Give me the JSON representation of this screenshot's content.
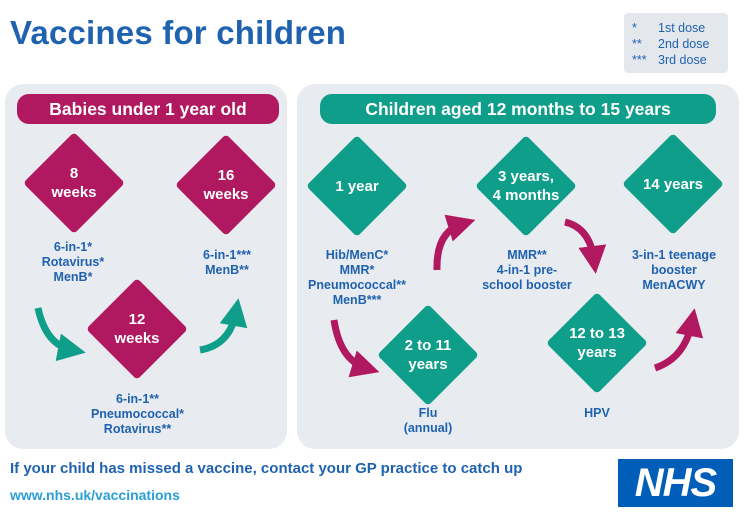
{
  "title": "Vaccines for children",
  "legend": [
    {
      "symbol": "*",
      "label": "1st dose"
    },
    {
      "symbol": "**",
      "label": "2nd dose"
    },
    {
      "symbol": "***",
      "label": "3rd dose"
    }
  ],
  "babies": {
    "heading": "Babies under 1 year old",
    "stages": [
      {
        "age": "8\nweeks",
        "vaccines": "6-in-1*\nRotavirus*\nMenB*"
      },
      {
        "age": "12\nweeks",
        "vaccines": "6-in-1**\nPneumococcal*\nRotavirus**"
      },
      {
        "age": "16\nweeks",
        "vaccines": "6-in-1***\nMenB**"
      }
    ]
  },
  "children": {
    "heading": "Children aged 12 months to 15 years",
    "stages": [
      {
        "age": "1 year",
        "vaccines": "Hib/MenC*\nMMR*\nPneumococcal**\nMenB***"
      },
      {
        "age": "2 to 11\nyears",
        "vaccines": "Flu\n(annual)"
      },
      {
        "age": "3 years,\n4 months",
        "vaccines": "MMR**\n4-in-1 pre-\nschool booster"
      },
      {
        "age": "12 to 13\nyears",
        "vaccines": "HPV"
      },
      {
        "age": "14 years",
        "vaccines": "3-in-1 teenage\nbooster\nMenACWY"
      }
    ]
  },
  "footer": {
    "message": "If your child has missed a vaccine, contact your GP practice to catch up",
    "url": "www.nhs.uk/vaccinations"
  },
  "logo": "NHS",
  "colors": {
    "magenta": "#b0185f",
    "teal": "#0f9e8a",
    "nhs_blue": "#1f62b0",
    "panel": "#e8ebef"
  }
}
